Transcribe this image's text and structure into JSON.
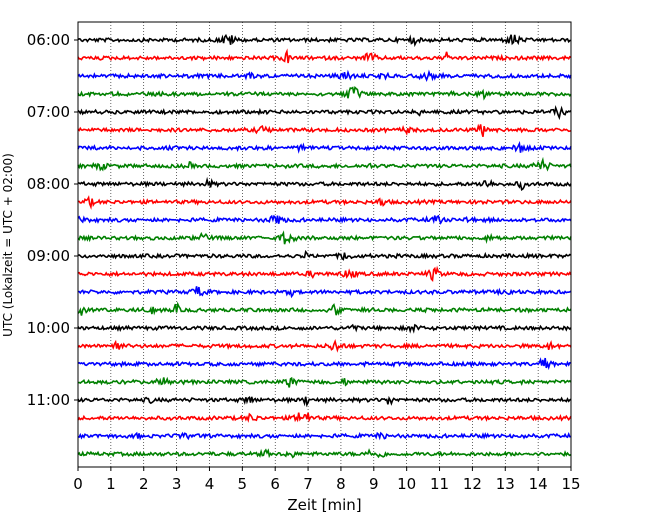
{
  "chart_data": {
    "type": "line",
    "title": "",
    "xlabel": "Zeit  [min]",
    "ylabel": "UTC (Lokalzeit = UTC + 02:00)",
    "xlim": [
      0,
      15
    ],
    "x_ticks": [
      0,
      1,
      2,
      3,
      4,
      5,
      6,
      7,
      8,
      9,
      10,
      11,
      12,
      13,
      14,
      15
    ],
    "y_ticks": [
      "06:00",
      "07:00",
      "08:00",
      "09:00",
      "10:00",
      "11:00"
    ],
    "vertical_grid": "dotted",
    "trace_colors": [
      "#000000",
      "#ff0000",
      "#0000ff",
      "#008000"
    ],
    "traces": [
      {
        "start": "06:00",
        "color": "#000000"
      },
      {
        "start": "06:15",
        "color": "#ff0000"
      },
      {
        "start": "06:30",
        "color": "#0000ff"
      },
      {
        "start": "06:45",
        "color": "#008000"
      },
      {
        "start": "07:00",
        "color": "#000000"
      },
      {
        "start": "07:15",
        "color": "#ff0000"
      },
      {
        "start": "07:30",
        "color": "#0000ff"
      },
      {
        "start": "07:45",
        "color": "#008000"
      },
      {
        "start": "08:00",
        "color": "#000000"
      },
      {
        "start": "08:15",
        "color": "#ff0000"
      },
      {
        "start": "08:30",
        "color": "#0000ff"
      },
      {
        "start": "08:45",
        "color": "#008000"
      },
      {
        "start": "09:00",
        "color": "#000000"
      },
      {
        "start": "09:15",
        "color": "#ff0000"
      },
      {
        "start": "09:30",
        "color": "#0000ff"
      },
      {
        "start": "09:45",
        "color": "#008000"
      },
      {
        "start": "10:00",
        "color": "#000000"
      },
      {
        "start": "10:15",
        "color": "#ff0000"
      },
      {
        "start": "10:30",
        "color": "#0000ff"
      },
      {
        "start": "10:45",
        "color": "#008000"
      },
      {
        "start": "11:00",
        "color": "#000000"
      },
      {
        "start": "11:15",
        "color": "#ff0000"
      },
      {
        "start": "11:30",
        "color": "#0000ff"
      },
      {
        "start": "11:45",
        "color": "#008000"
      }
    ]
  }
}
